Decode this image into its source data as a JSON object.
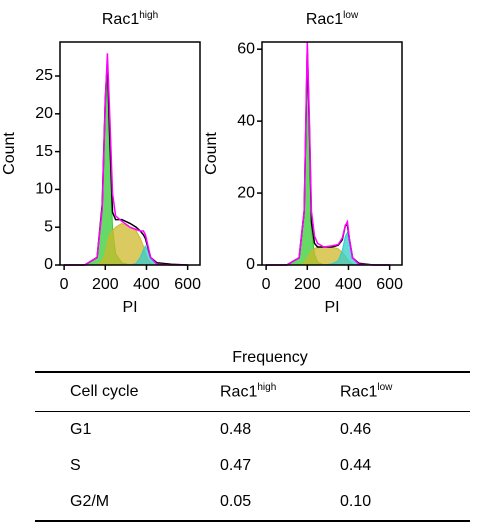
{
  "chart_data": [
    {
      "type": "area",
      "title": "Rac1",
      "title_sup": "high",
      "xlabel": "PI",
      "ylabel": "Count",
      "x": [
        0,
        100,
        160,
        185,
        200,
        210,
        220,
        235,
        250,
        280,
        320,
        350,
        370,
        385,
        395,
        405,
        420,
        450,
        520,
        600
      ],
      "series": [
        {
          "color": "#33cc33",
          "filled": true,
          "values": [
            0,
            0,
            1,
            7,
            20,
            25,
            17,
            5,
            1.5,
            0.3,
            0,
            0,
            0,
            0,
            0,
            0,
            0,
            0,
            0,
            0
          ]
        },
        {
          "color": "#cdb82a",
          "filled": true,
          "values": [
            0,
            0,
            0,
            0.5,
            1.5,
            3,
            4,
            4.5,
            5,
            5.5,
            5,
            4.5,
            3.5,
            2.5,
            1.5,
            0.8,
            0.2,
            0,
            0,
            0
          ]
        },
        {
          "color": "#33cccc",
          "filled": true,
          "values": [
            0,
            0,
            0,
            0,
            0,
            0,
            0,
            0,
            0,
            0,
            0,
            0.2,
            1,
            2,
            2.5,
            2,
            0.8,
            0.1,
            0,
            0
          ]
        },
        {
          "color": "#000000",
          "filled": false,
          "values": [
            0,
            0,
            1,
            8,
            22,
            27,
            18,
            7,
            6,
            6,
            5.5,
            5,
            4.5,
            4,
            3.5,
            2.5,
            1,
            0.3,
            0.1,
            0
          ]
        },
        {
          "color": "#ff00ff",
          "filled": false,
          "values": [
            0,
            0,
            1,
            7.5,
            21.5,
            28,
            21,
            9.5,
            6.5,
            5.8,
            5,
            4.7,
            4.5,
            4.5,
            4,
            2.8,
            1,
            0.1,
            0,
            0
          ]
        }
      ],
      "xlim": [
        -20,
        660
      ],
      "ylim": [
        0,
        29.5
      ],
      "xticks": [
        0,
        200,
        400,
        600
      ],
      "yticks": [
        0,
        5,
        10,
        15,
        20,
        25
      ]
    },
    {
      "type": "area",
      "title": "Rac1",
      "title_sup": "low",
      "xlabel": "PI",
      "ylabel": "Count",
      "x": [
        0,
        100,
        160,
        185,
        200,
        210,
        220,
        235,
        250,
        280,
        320,
        350,
        370,
        385,
        395,
        405,
        420,
        450,
        520,
        600
      ],
      "series": [
        {
          "color": "#33cc33",
          "filled": true,
          "values": [
            0,
            0,
            2,
            14,
            57,
            36,
            10,
            3,
            0.8,
            0,
            0,
            0,
            0,
            0,
            0,
            0,
            0,
            0,
            0,
            0
          ]
        },
        {
          "color": "#cdb82a",
          "filled": true,
          "values": [
            0,
            0,
            0,
            0.5,
            2,
            3,
            4,
            4.5,
            5,
            5,
            5,
            4.5,
            3.5,
            2.5,
            1.5,
            0.8,
            0.2,
            0,
            0,
            0
          ]
        },
        {
          "color": "#33cccc",
          "filled": true,
          "values": [
            0,
            0,
            0,
            0,
            0,
            0,
            0,
            0,
            0,
            0,
            0.3,
            1.2,
            4,
            8,
            9,
            6,
            1.8,
            0.2,
            0,
            0
          ]
        },
        {
          "color": "#000000",
          "filled": false,
          "values": [
            0,
            0,
            2,
            15,
            60,
            38,
            12,
            6,
            5,
            5,
            5,
            5.5,
            7,
            11,
            11,
            7,
            2,
            0.5,
            0,
            0
          ]
        },
        {
          "color": "#ff00ff",
          "filled": false,
          "values": [
            0,
            0,
            2,
            15,
            62,
            40,
            15,
            8,
            6,
            5,
            5.3,
            5.7,
            7.5,
            11,
            12,
            7,
            2,
            0.2,
            0,
            0
          ]
        }
      ],
      "xlim": [
        -20,
        660
      ],
      "ylim": [
        0,
        62
      ],
      "xticks": [
        0,
        200,
        400,
        600
      ],
      "yticks": [
        0,
        20,
        40,
        60
      ]
    }
  ],
  "table": {
    "group_header": "Frequency",
    "header": [
      {
        "text": "Cell cycle"
      },
      {
        "text": "Rac1",
        "sup": "high"
      },
      {
        "text": "Rac1",
        "sup": "low"
      }
    ],
    "rows": [
      [
        "G1",
        "0.48",
        "0.46"
      ],
      [
        "S",
        "0.47",
        "0.44"
      ],
      [
        "G2/M",
        "0.05",
        "0.10"
      ]
    ]
  }
}
